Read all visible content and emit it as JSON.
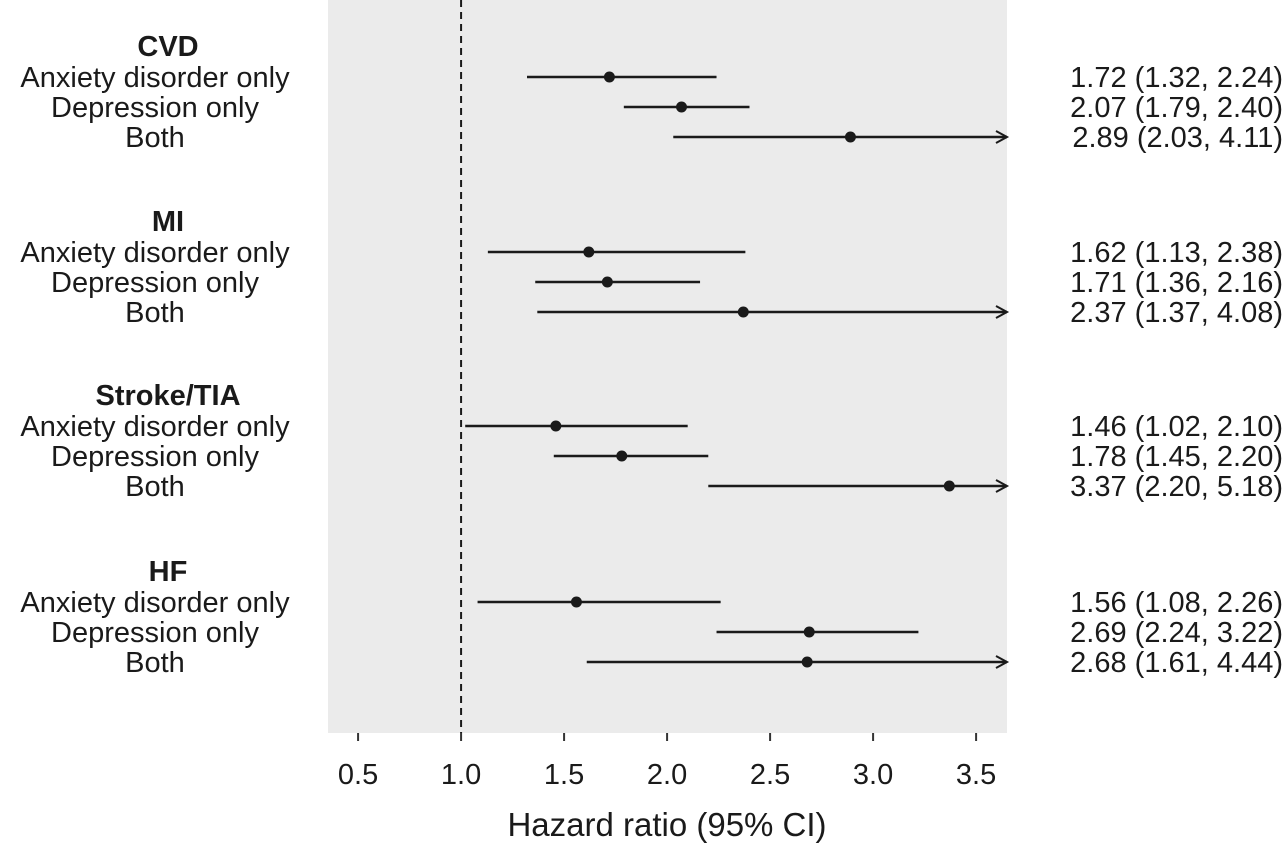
{
  "chart_data": {
    "type": "forest",
    "xlabel": "Hazard ratio (95% CI)",
    "xlim": [
      0.354,
      3.65
    ],
    "xticks": [
      0.5,
      1.0,
      1.5,
      2.0,
      2.5,
      3.0,
      3.5
    ],
    "xtick_labels": [
      "0.5",
      "1.0",
      "1.5",
      "2.0",
      "2.5",
      "3.0",
      "3.5"
    ],
    "reference_line": 1.0,
    "panel_background": "#ebebeb",
    "grid": false,
    "groups": [
      {
        "name": "CVD",
        "rows": [
          {
            "label": "Anxiety disorder only",
            "hr": 1.72,
            "lower": 1.32,
            "upper": 2.24,
            "text": "1.72 (1.32, 2.24)"
          },
          {
            "label": "Depression only",
            "hr": 2.07,
            "lower": 1.79,
            "upper": 2.4,
            "text": "2.07 (1.79, 2.40)"
          },
          {
            "label": "Both",
            "hr": 2.89,
            "lower": 2.03,
            "upper": 4.11,
            "text": "2.89 (2.03, 4.11)"
          }
        ]
      },
      {
        "name": "MI",
        "rows": [
          {
            "label": "Anxiety disorder only",
            "hr": 1.62,
            "lower": 1.13,
            "upper": 2.38,
            "text": "1.62 (1.13, 2.38)"
          },
          {
            "label": "Depression only",
            "hr": 1.71,
            "lower": 1.36,
            "upper": 2.16,
            "text": "1.71 (1.36, 2.16)"
          },
          {
            "label": "Both",
            "hr": 2.37,
            "lower": 1.37,
            "upper": 4.08,
            "text": "2.37 (1.37, 4.08)"
          }
        ]
      },
      {
        "name": "Stroke/TIA",
        "rows": [
          {
            "label": "Anxiety disorder only",
            "hr": 1.46,
            "lower": 1.02,
            "upper": 2.1,
            "text": "1.46 (1.02, 2.10)"
          },
          {
            "label": "Depression only",
            "hr": 1.78,
            "lower": 1.45,
            "upper": 2.2,
            "text": "1.78 (1.45, 2.20)"
          },
          {
            "label": "Both",
            "hr": 3.37,
            "lower": 2.2,
            "upper": 5.18,
            "text": "3.37 (2.20, 5.18)"
          }
        ]
      },
      {
        "name": "HF",
        "rows": [
          {
            "label": "Anxiety disorder only",
            "hr": 1.56,
            "lower": 1.08,
            "upper": 2.26,
            "text": "1.56 (1.08, 2.26)"
          },
          {
            "label": "Depression only",
            "hr": 2.69,
            "lower": 2.24,
            "upper": 3.22,
            "text": "2.69 (2.24, 3.22)"
          },
          {
            "label": "Both",
            "hr": 2.68,
            "lower": 1.61,
            "upper": 4.44,
            "text": "2.68 (1.61, 4.44)"
          }
        ]
      }
    ]
  }
}
